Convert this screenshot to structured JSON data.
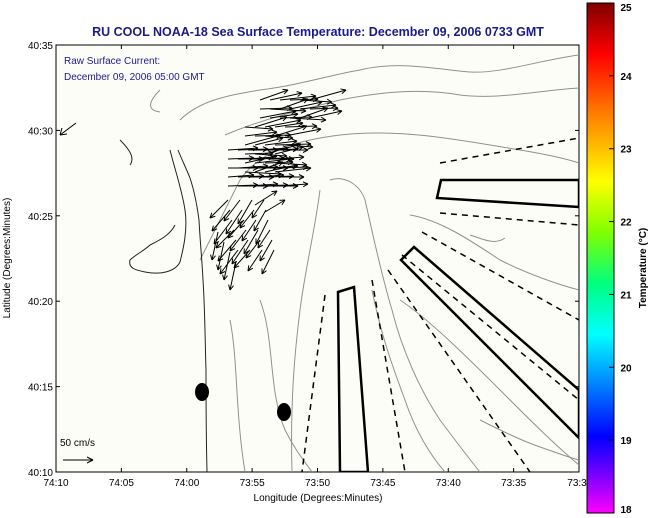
{
  "chart_data": {
    "type": "map",
    "title": "RU COOL  NOAA-18  Sea Surface Temperature:  December 09, 2006 0733 GMT",
    "annotation": {
      "line1": "Raw Surface Current:",
      "line2": "December 09, 2006 05:00 GMT"
    },
    "scale_label": "50 cm/s",
    "xlabel": "Longitude (Degrees:Minutes)",
    "ylabel": "Latitude (Degrees:Minutes)",
    "x_ticks": [
      "74:10",
      "74:05",
      "74:00",
      "73:55",
      "73:50",
      "73:45",
      "73:40",
      "73:35",
      "73:3"
    ],
    "y_ticks": [
      "40:35",
      "40:30",
      "40:25",
      "40:20",
      "40:15",
      "40:10"
    ],
    "colorbar": {
      "label": "Temperature (°C)",
      "ticks": [
        "25",
        "24",
        "23",
        "22",
        "21",
        "20",
        "19",
        "18"
      ],
      "range": [
        18,
        25
      ],
      "colors": [
        "#ff00ff",
        "#8000ff",
        "#0000ff",
        "#0080ff",
        "#00ffff",
        "#00ff80",
        "#80ff00",
        "#ffff00",
        "#ff8000",
        "#ff0000",
        "#800000"
      ]
    },
    "colors": {
      "title": "#1a1a8c",
      "annotation": "#1a1a8c",
      "background": "#fdfdf8",
      "contour": "#909090"
    }
  }
}
